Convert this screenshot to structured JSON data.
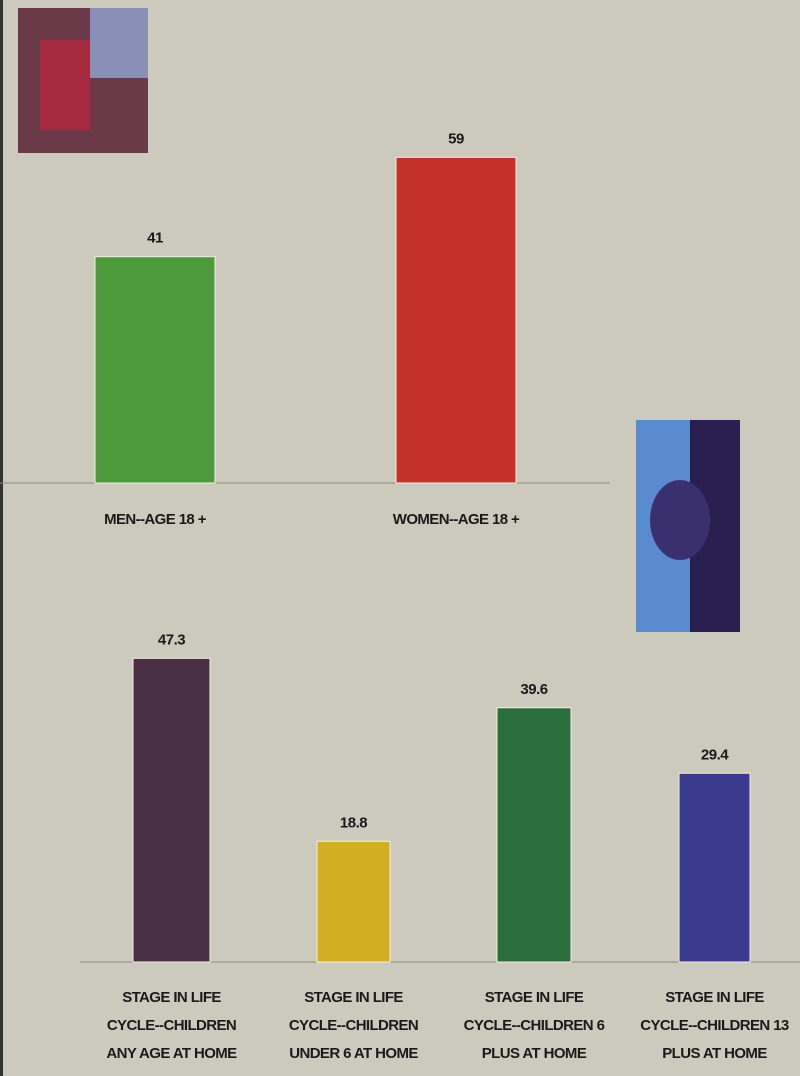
{
  "chart_data": [
    {
      "type": "bar",
      "categories": [
        "MEN--AGE 18 +",
        "WOMEN--AGE 18 +"
      ],
      "values": [
        41,
        59
      ],
      "colors": [
        "#4c9a3c",
        "#c4302a"
      ]
    },
    {
      "type": "bar",
      "categories": [
        "STAGE IN LIFE CYCLE--CHILDREN ANY AGE AT HOME",
        "STAGE IN LIFE CYCLE--CHILDREN UNDER 6 AT HOME",
        "STAGE IN LIFE CYCLE--CHILDREN 6 PLUS AT HOME",
        "STAGE IN LIFE CYCLE--CHILDREN 13 PLUS AT HOME"
      ],
      "values": [
        47.3,
        18.8,
        39.6,
        29.4
      ],
      "colors": [
        "#4a2f45",
        "#d2ae22",
        "#2b6e3e",
        "#3a3a8e"
      ]
    }
  ]
}
